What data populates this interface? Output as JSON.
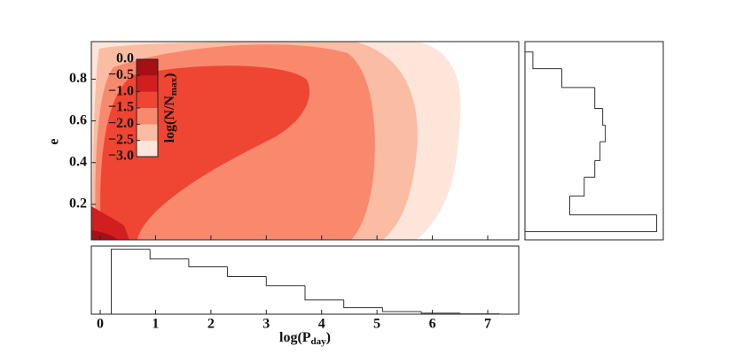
{
  "chart_data": [
    {
      "type": "contour",
      "ylabel": "e",
      "xlim": [
        -0.16,
        7.56
      ],
      "ylim": [
        0.03,
        0.98
      ],
      "yticks": [
        0.2,
        0.4,
        0.6,
        0.8
      ],
      "colorbar_label": [
        "log(N/N",
        "max",
        ")"
      ],
      "levels": [
        {
          "value": -3.0,
          "label": "−3.0"
        },
        {
          "value": -2.5,
          "label": "−2.5"
        },
        {
          "value": -2.0,
          "label": "−2.0"
        },
        {
          "value": -1.5,
          "label": "−1.5"
        },
        {
          "value": -1.0,
          "label": "−1.0"
        },
        {
          "value": -0.5,
          "label": "−0.5"
        },
        {
          "value": 0.0,
          "label": "0.0"
        }
      ],
      "colors": [
        "#fde5da",
        "#fbbca4",
        "#f9896c",
        "#ef4533",
        "#d11f1f",
        "#a50f15"
      ]
    },
    {
      "type": "histogram",
      "xlabel": [
        "log(P",
        "day",
        ")"
      ],
      "xlim": [
        -0.16,
        7.56
      ],
      "ylim": [
        0,
        1.05
      ],
      "xticks": [
        0,
        1,
        2,
        3,
        4,
        5,
        6,
        7
      ],
      "bins": [
        0.2,
        0.9,
        1.6,
        2.3,
        3.0,
        3.7,
        4.4,
        5.1,
        5.8,
        6.5,
        7.2
      ],
      "values": [
        1.0,
        0.85,
        0.73,
        0.58,
        0.44,
        0.22,
        0.1,
        0.04,
        0.015,
        0.005
      ],
      "color": "#333333"
    },
    {
      "type": "histogram",
      "orientation": "horizontal",
      "xlim": [
        0,
        1.05
      ],
      "ylim": [
        0.03,
        0.98
      ],
      "bins": [
        0.07,
        0.15,
        0.24,
        0.33,
        0.41,
        0.5,
        0.58,
        0.66,
        0.76,
        0.85,
        0.93
      ],
      "values": [
        1.0,
        0.34,
        0.45,
        0.53,
        0.57,
        0.61,
        0.59,
        0.53,
        0.28,
        0.06
      ],
      "color": "#333333"
    }
  ]
}
